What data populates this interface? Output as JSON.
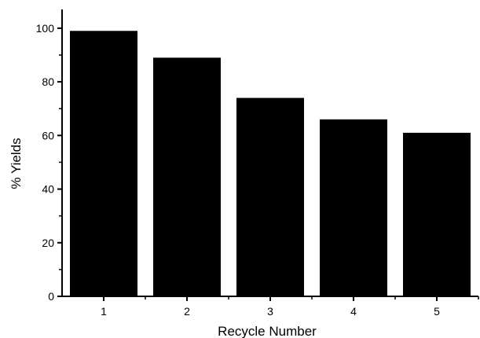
{
  "chart_data": {
    "type": "bar",
    "categories": [
      "1",
      "2",
      "3",
      "4",
      "5"
    ],
    "values": [
      99,
      89,
      74,
      66,
      61
    ],
    "title": "",
    "xlabel": "Recycle Number",
    "ylabel": "% Yields",
    "ylim": [
      0,
      107
    ],
    "yticks": [
      0,
      20,
      40,
      60,
      80,
      100
    ],
    "grid": false,
    "legend": "none",
    "bar_color": "#000000"
  }
}
